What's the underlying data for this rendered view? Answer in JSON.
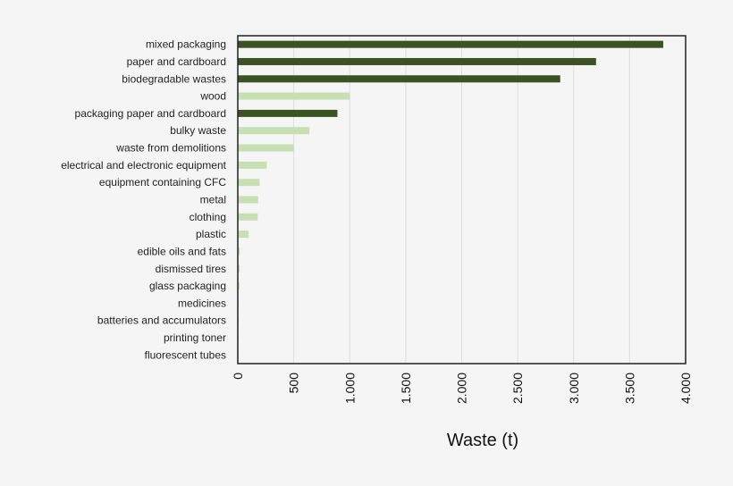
{
  "chart_data": {
    "type": "bar",
    "orientation": "horizontal",
    "title": "",
    "xlabel": "Waste (t)",
    "ylabel": "",
    "xlim": [
      0,
      4000
    ],
    "xticks": [
      0,
      500,
      1000,
      1500,
      2000,
      2500,
      3000,
      3500,
      4000
    ],
    "xtick_labels": [
      "0",
      "500",
      "1.000",
      "1.500",
      "2.000",
      "2.500",
      "3.000",
      "3.500",
      "4.000"
    ],
    "grid": "vertical",
    "legend": "none",
    "colors": {
      "dark": "#3b5323",
      "light": "#c6e0b4"
    },
    "categories": [
      "mixed packaging",
      "paper and cardboard",
      "biodegradable wastes",
      "wood",
      "packaging paper and cardboard",
      "bulky waste",
      "waste from demolitions",
      "electrical and electronic equipment",
      "equipment containing CFC",
      "metal",
      "clothing",
      "plastic",
      "edible oils and fats",
      "dismissed tires",
      "glass packaging",
      "medicines",
      "batteries and accumulators",
      "printing toner",
      "fluorescent tubes"
    ],
    "values": [
      3800,
      3200,
      2880,
      1000,
      890,
      640,
      500,
      258,
      195,
      182,
      178,
      96,
      18,
      17,
      15,
      5,
      2,
      2,
      2
    ],
    "bar_color_group": [
      "dark",
      "dark",
      "dark",
      "light",
      "dark",
      "light",
      "light",
      "light",
      "light",
      "light",
      "light",
      "light",
      "light",
      "light",
      "light",
      "light",
      "light",
      "light",
      "light"
    ]
  }
}
